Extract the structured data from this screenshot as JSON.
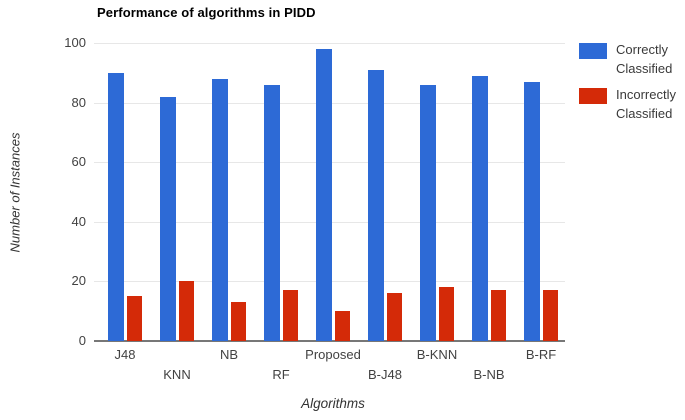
{
  "title": "Performance of algorithms in PIDD",
  "chart_data": {
    "type": "bar",
    "title": "Performance of algorithms in PIDD",
    "xlabel": "Algorithms",
    "ylabel": "Number of Instances",
    "ylim": [
      0,
      100
    ],
    "yticks": [
      0,
      20,
      40,
      60,
      80,
      100
    ],
    "grid": true,
    "legend_position": "right",
    "categories": [
      "J48",
      "KNN",
      "NB",
      "RF",
      "Proposed",
      "B-J48",
      "B-KNN",
      "B-NB",
      "B-RF"
    ],
    "series": [
      {
        "name": "Correctly Classified",
        "color": "#2d6ad6",
        "values": [
          90,
          82,
          88,
          86,
          98,
          91,
          86,
          89,
          87
        ]
      },
      {
        "name": "Incorrectly Classified",
        "color": "#d42a08",
        "values": [
          15,
          20,
          13,
          17,
          10,
          16,
          18,
          17,
          17
        ]
      }
    ]
  }
}
